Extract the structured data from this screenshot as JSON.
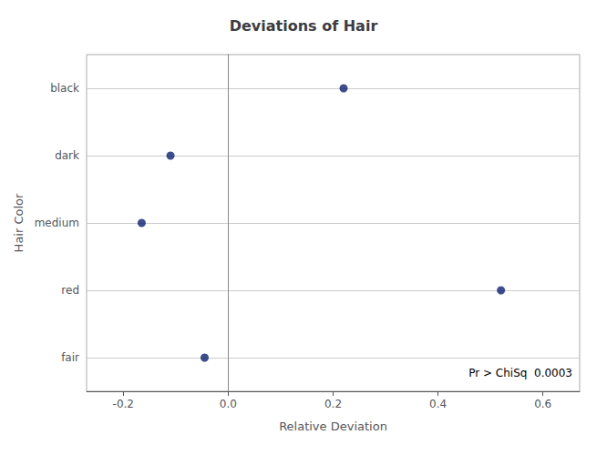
{
  "chart_data": {
    "type": "scatter",
    "title": "Deviations of Hair",
    "xlabel": "Relative Deviation",
    "ylabel": "Hair Color",
    "categories": [
      "black",
      "dark",
      "medium",
      "red",
      "fair"
    ],
    "values": [
      0.22,
      -0.11,
      -0.165,
      0.52,
      -0.045
    ],
    "color": "#0d2172",
    "xlim": [
      -0.27,
      0.67
    ],
    "xticks": [
      -0.2,
      {
        "value": 0.0,
        "label": "0.0"
      },
      0.2,
      0.4,
      0.6
    ],
    "vline_x": 0.0,
    "annotation": "Pr > ChiSq  0.0003",
    "grid": true
  }
}
